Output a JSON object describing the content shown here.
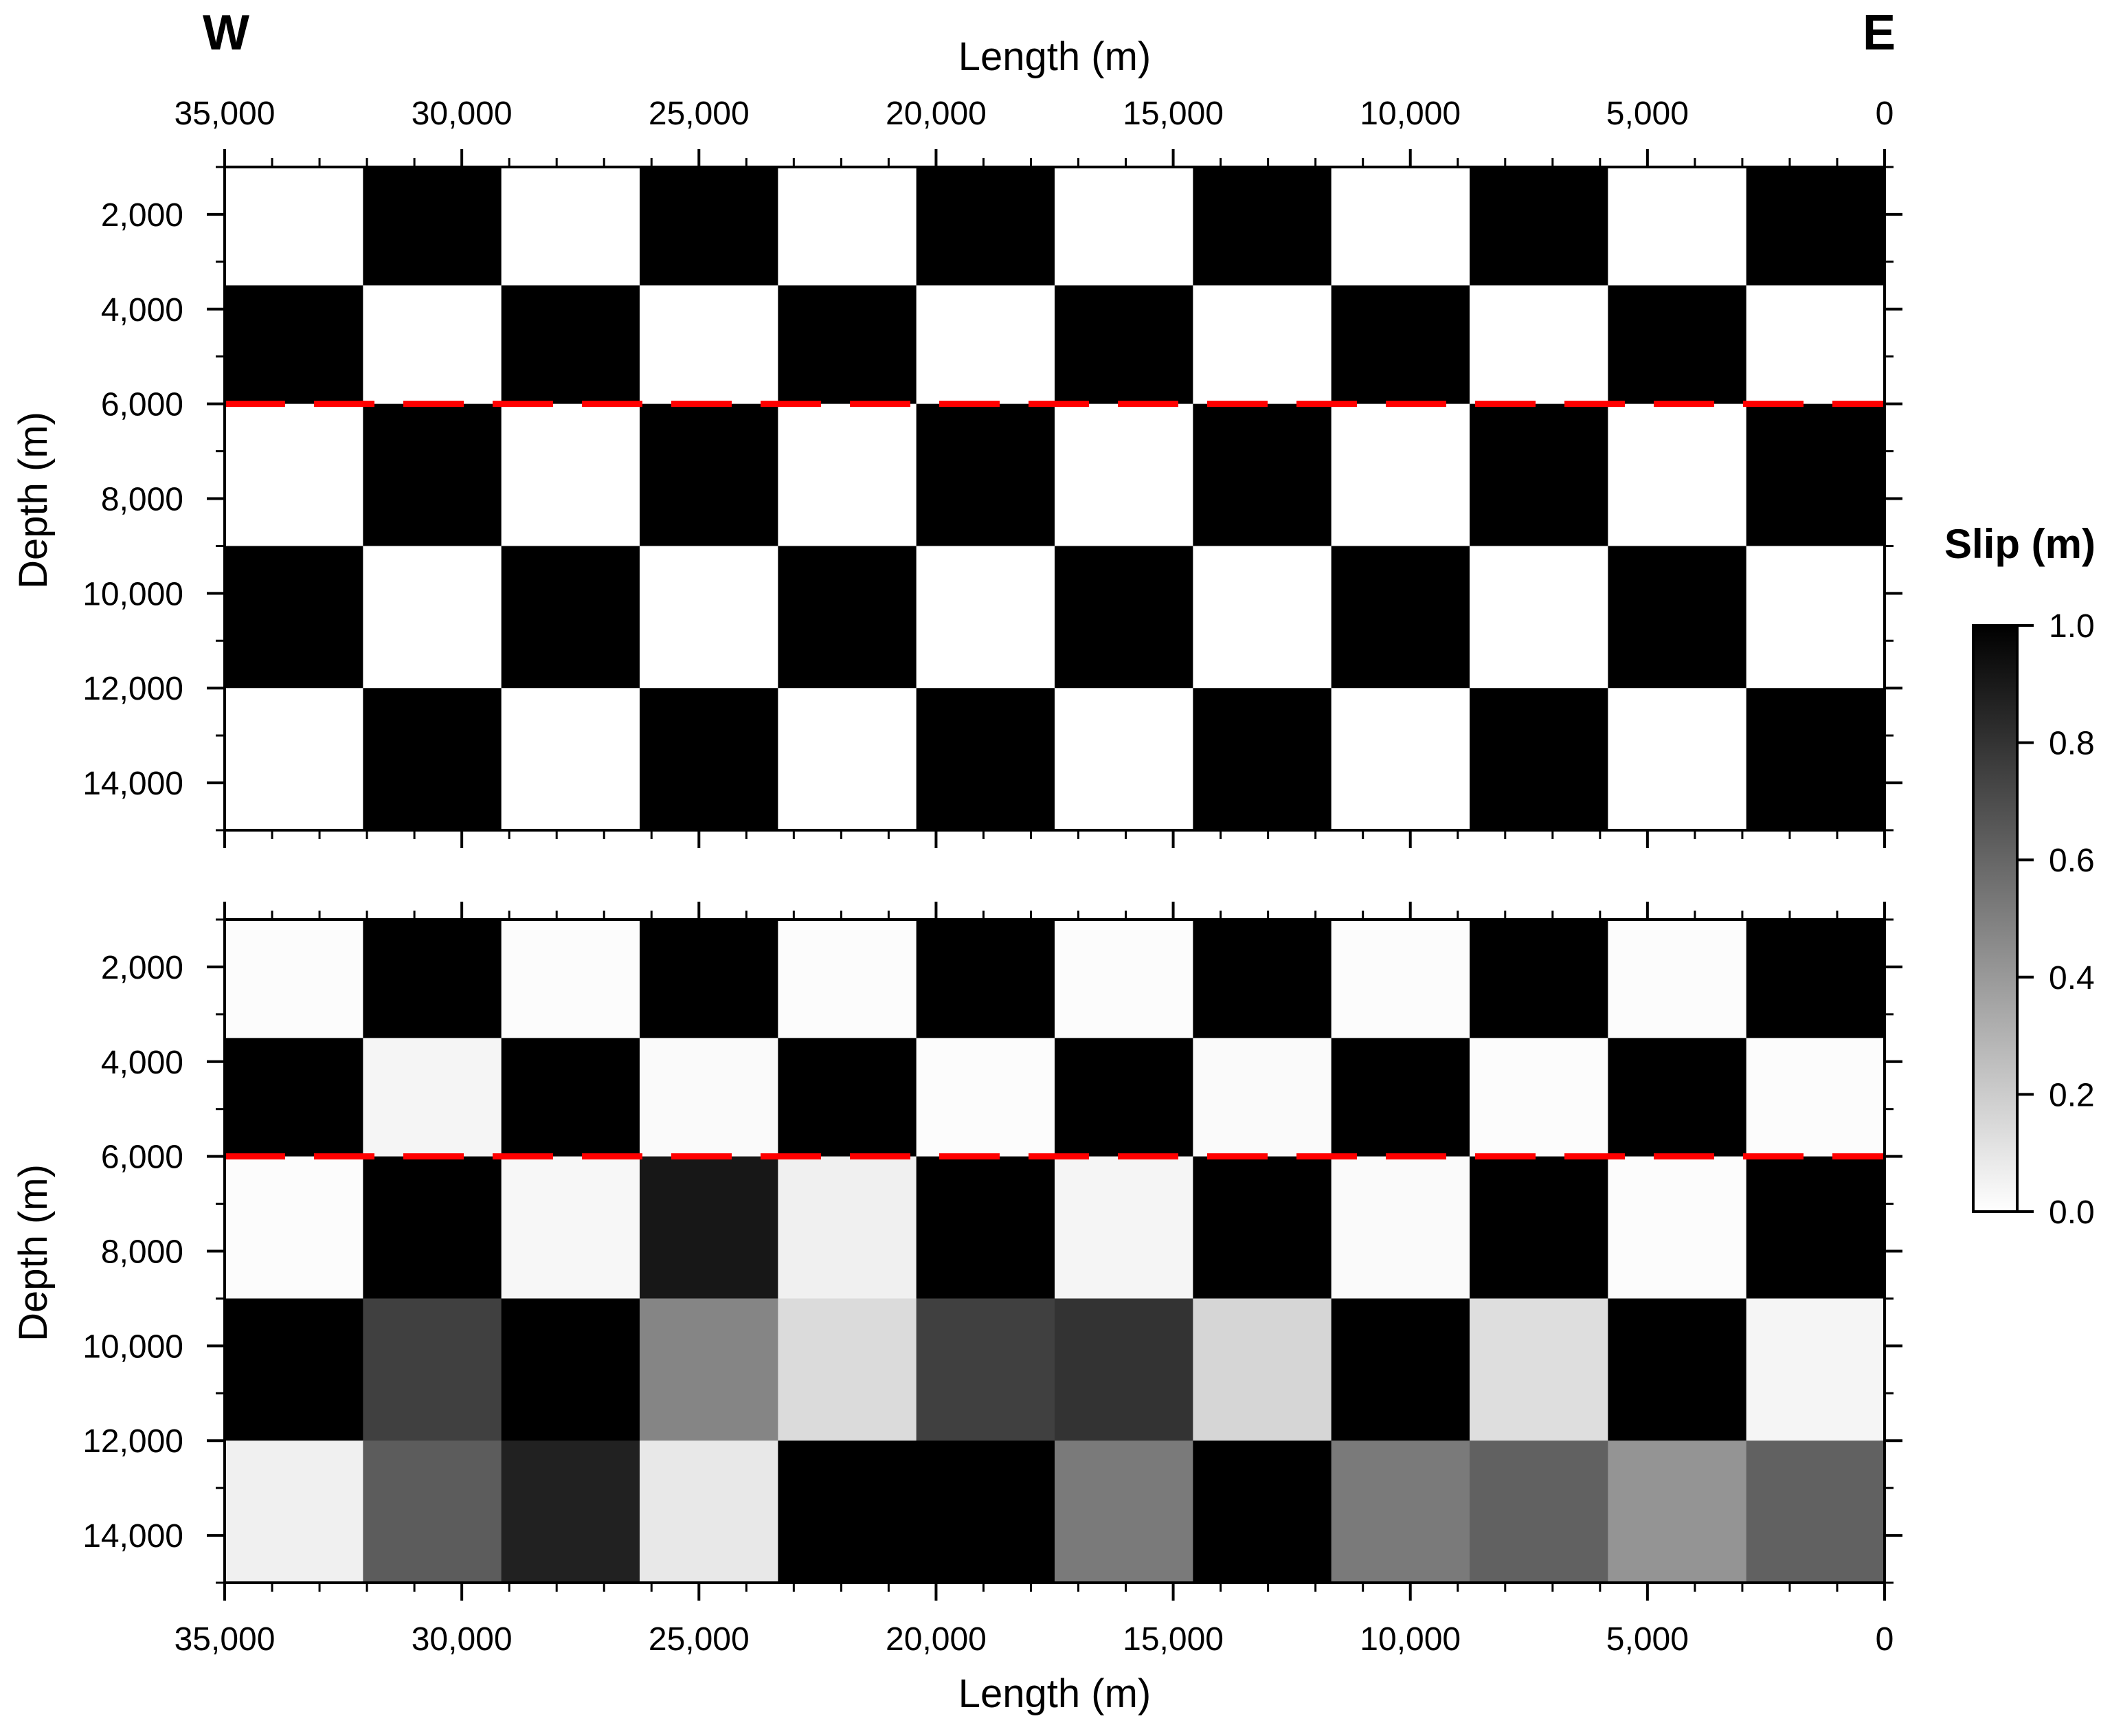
{
  "labels": {
    "west": "W",
    "east": "E",
    "xlabel": "Length (m)",
    "ylabel": "Depth (m)",
    "colorbar_title": "Slip (m)"
  },
  "chart_data": {
    "type": "heatmap",
    "xlim": [
      35000,
      0
    ],
    "ylim": [
      15000,
      1000
    ],
    "x_ticks": [
      35000,
      30000,
      25000,
      20000,
      15000,
      10000,
      5000,
      0
    ],
    "x_tick_labels": [
      "35,000",
      "30,000",
      "25,000",
      "20,000",
      "15,000",
      "10,000",
      "5,000",
      "0"
    ],
    "y_ticks": [
      2000,
      4000,
      6000,
      8000,
      10000,
      12000,
      14000
    ],
    "y_tick_labels": [
      "2,000",
      "4,000",
      "6,000",
      "8,000",
      "10,000",
      "12,000",
      "14,000"
    ],
    "column_edges_m": [
      35000,
      32083,
      29167,
      26250,
      23333,
      20417,
      17500,
      14583,
      11667,
      8750,
      5833,
      2917,
      0
    ],
    "row_edges_m": [
      1000,
      3500,
      6000,
      9000,
      12000,
      15000
    ],
    "reference_line": {
      "depth": 6000,
      "color": "#ff0000",
      "style": "dashed"
    },
    "colorbar": {
      "min": 0.0,
      "max": 1.0,
      "ticks": [
        0.0,
        0.2,
        0.4,
        0.6,
        0.8,
        1.0
      ],
      "tick_labels": [
        "0.0",
        "0.2",
        "0.4",
        "0.6",
        "0.8",
        "1.0"
      ],
      "low_color": "#ffffff",
      "high_color": "#000000"
    },
    "panels": [
      {
        "name": "input",
        "slip": [
          [
            0,
            1,
            0,
            1,
            0,
            1,
            0,
            1,
            0,
            1,
            0,
            1
          ],
          [
            1,
            0,
            1,
            0,
            1,
            0,
            1,
            0,
            1,
            0,
            1,
            0
          ],
          [
            0,
            1,
            0,
            1,
            0,
            1,
            0,
            1,
            0,
            1,
            0,
            1
          ],
          [
            1,
            0,
            1,
            0,
            1,
            0,
            1,
            0,
            1,
            0,
            1,
            0
          ],
          [
            0,
            1,
            0,
            1,
            0,
            1,
            0,
            1,
            0,
            1,
            0,
            1
          ]
        ]
      },
      {
        "name": "recovered",
        "slip": [
          [
            0.01,
            1.0,
            0.01,
            1.0,
            0.01,
            1.0,
            0.01,
            1.0,
            0.01,
            1.0,
            0.01,
            1.0
          ],
          [
            1.0,
            0.04,
            1.0,
            0.02,
            1.0,
            0.01,
            1.0,
            0.02,
            1.0,
            0.01,
            1.0,
            0.01
          ],
          [
            0.01,
            1.0,
            0.03,
            0.91,
            0.06,
            1.0,
            0.04,
            1.0,
            0.02,
            1.0,
            0.01,
            1.0
          ],
          [
            1.0,
            0.75,
            1.0,
            0.48,
            0.14,
            0.75,
            0.8,
            0.16,
            1.0,
            0.13,
            1.0,
            0.04
          ],
          [
            0.06,
            0.64,
            0.87,
            0.09,
            1.0,
            1.0,
            0.52,
            1.0,
            0.52,
            0.62,
            0.42,
            0.62
          ]
        ]
      }
    ]
  }
}
